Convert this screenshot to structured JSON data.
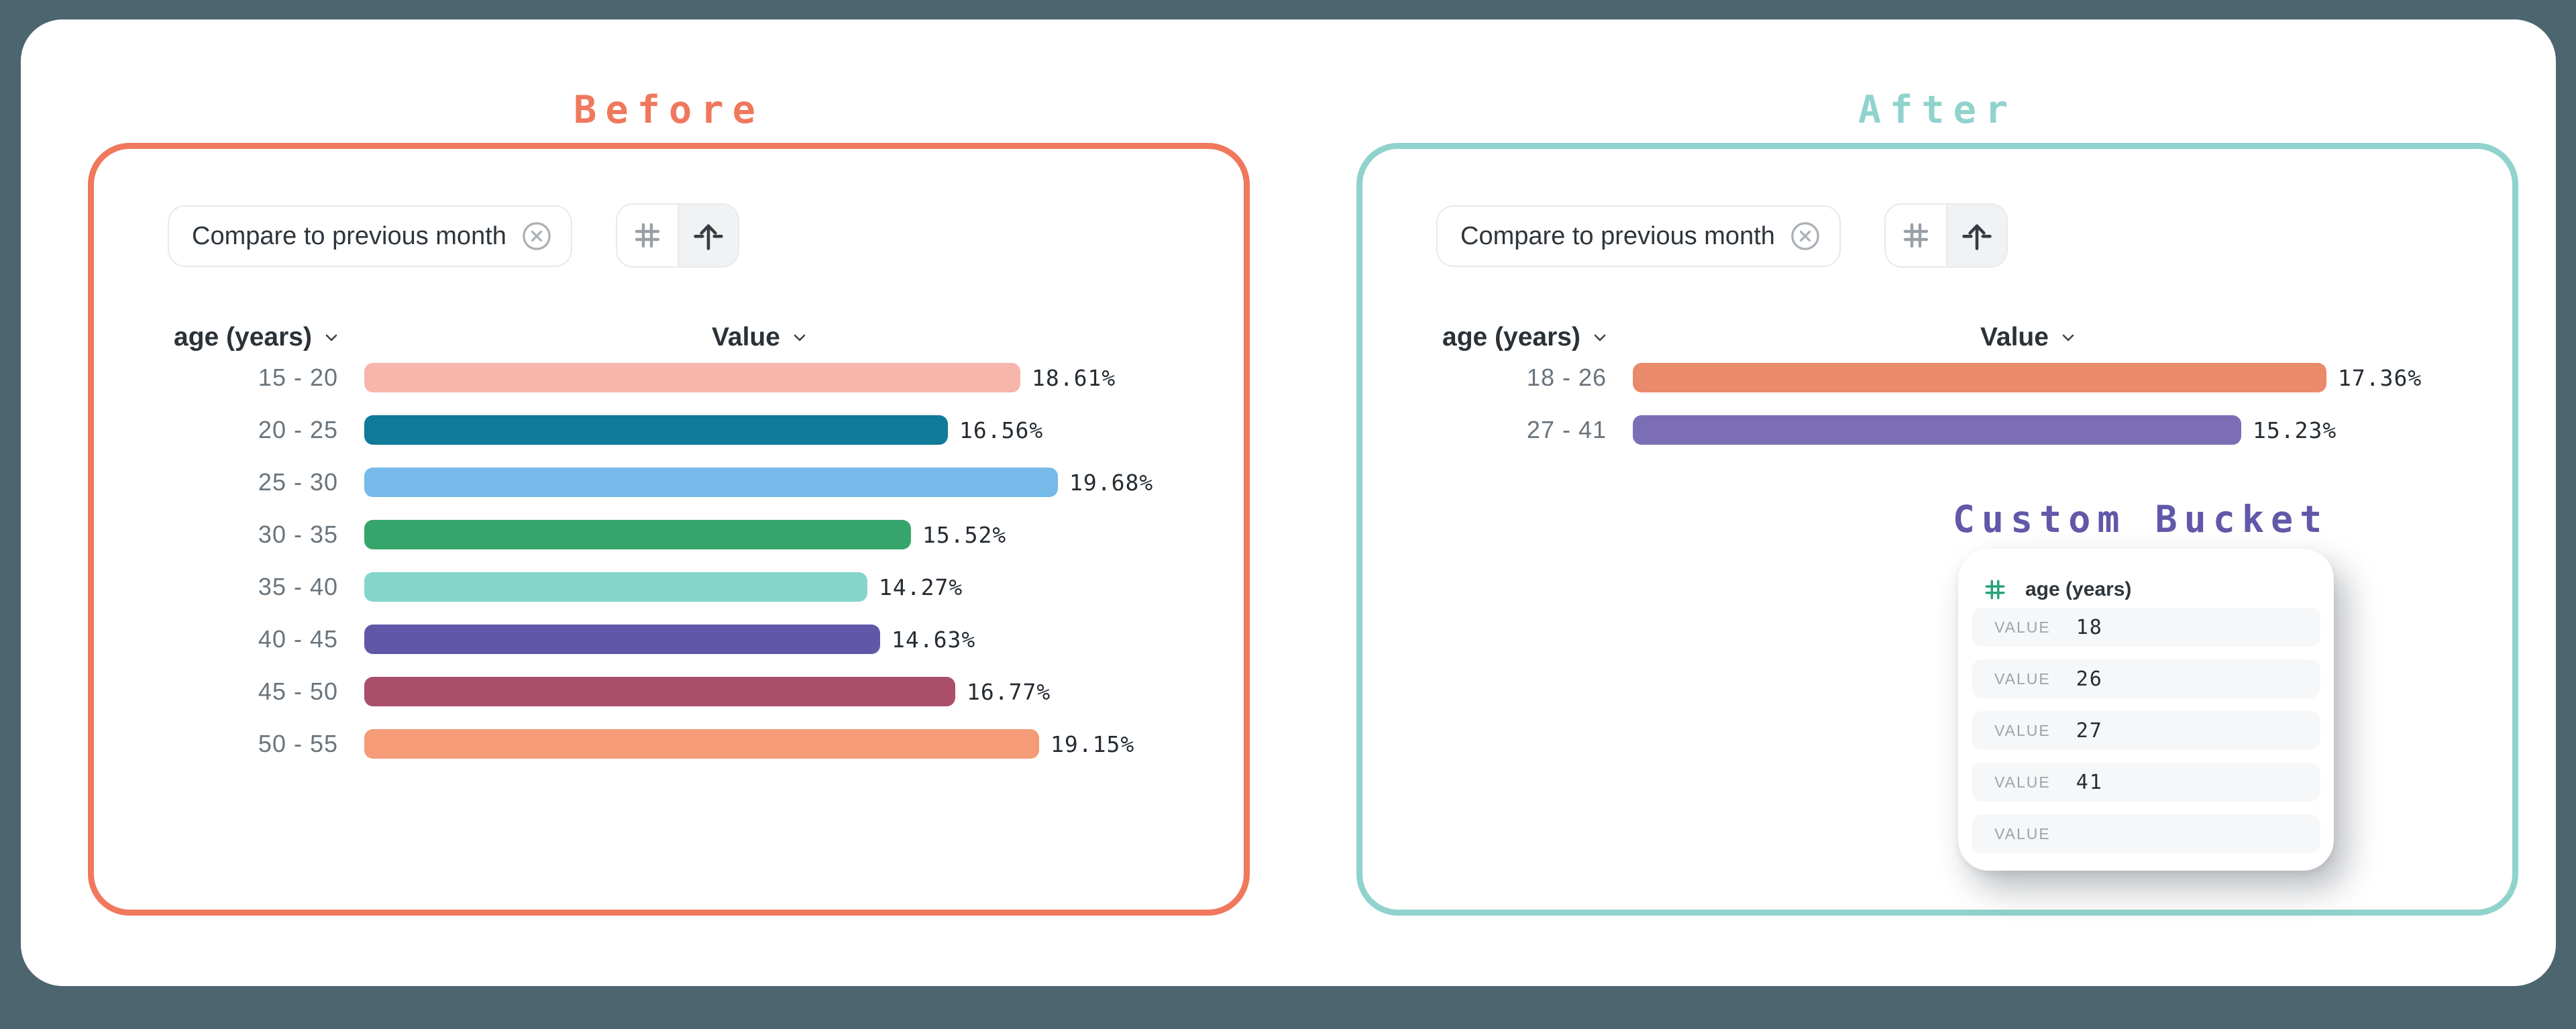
{
  "page": {
    "background": "#4C656F",
    "card_background": "#FFFFFF"
  },
  "before": {
    "title": "Before",
    "accent": "#F0785C",
    "toolbar": {
      "filter_chip_label": "Compare to previous month",
      "remove_filter_icon": "circle-x-icon",
      "binning_buttons": [
        {
          "icon": "hash-icon",
          "active": false
        },
        {
          "icon": "arrow-up-icon",
          "active": true
        }
      ]
    },
    "columns": {
      "dimension": "age (years)",
      "metric": "Value"
    }
  },
  "after": {
    "title": "After",
    "accent": "#90D3CD",
    "toolbar": {
      "filter_chip_label": "Compare to previous month",
      "remove_filter_icon": "circle-x-icon",
      "binning_buttons": [
        {
          "icon": "hash-icon",
          "active": false
        },
        {
          "icon": "arrow-up-icon",
          "active": true
        }
      ]
    },
    "columns": {
      "dimension": "age (years)",
      "metric": "Value"
    },
    "custom_bucket": {
      "title": "Custom Bucket",
      "accent": "#6158A9",
      "field_label": "age (years)",
      "field_icon": "hash-icon",
      "field_icon_color": "#27A376",
      "rows": [
        {
          "label": "VALUE",
          "value": "18"
        },
        {
          "label": "VALUE",
          "value": "26"
        },
        {
          "label": "VALUE",
          "value": "27"
        },
        {
          "label": "VALUE",
          "value": "41"
        },
        {
          "label": "VALUE",
          "value": ""
        }
      ]
    }
  },
  "chart_data": [
    {
      "id": "before",
      "type": "bar",
      "orientation": "horizontal",
      "title": "Before",
      "categories": [
        "15 - 20",
        "20 - 25",
        "25 - 30",
        "30 - 35",
        "35 - 40",
        "40 - 45",
        "45 - 50",
        "50 - 55"
      ],
      "values": [
        18.61,
        16.56,
        19.68,
        15.52,
        14.27,
        14.63,
        16.77,
        19.15
      ],
      "value_labels": [
        "18.61%",
        "16.56%",
        "19.68%",
        "15.52%",
        "14.27%",
        "14.63%",
        "16.77%",
        "19.15%"
      ],
      "colors": [
        "#F6B6AB",
        "#0F7A99",
        "#75BAE9",
        "#36A56B",
        "#85D5CB",
        "#6057A9",
        "#AA4E69",
        "#F59B78"
      ],
      "xlabel": "Value",
      "ylabel": "age (years)",
      "xlim": [
        0,
        19.68
      ],
      "grid": false,
      "legend": false
    },
    {
      "id": "after",
      "type": "bar",
      "orientation": "horizontal",
      "title": "After",
      "categories": [
        "18 - 26",
        "27 - 41"
      ],
      "values": [
        17.36,
        15.23
      ],
      "value_labels": [
        "17.36%",
        "15.23%"
      ],
      "colors": [
        "#E98A6B",
        "#7C6EB5"
      ],
      "xlabel": "Value",
      "ylabel": "age (years)",
      "xlim": [
        0,
        17.36
      ],
      "grid": false,
      "legend": false
    }
  ]
}
